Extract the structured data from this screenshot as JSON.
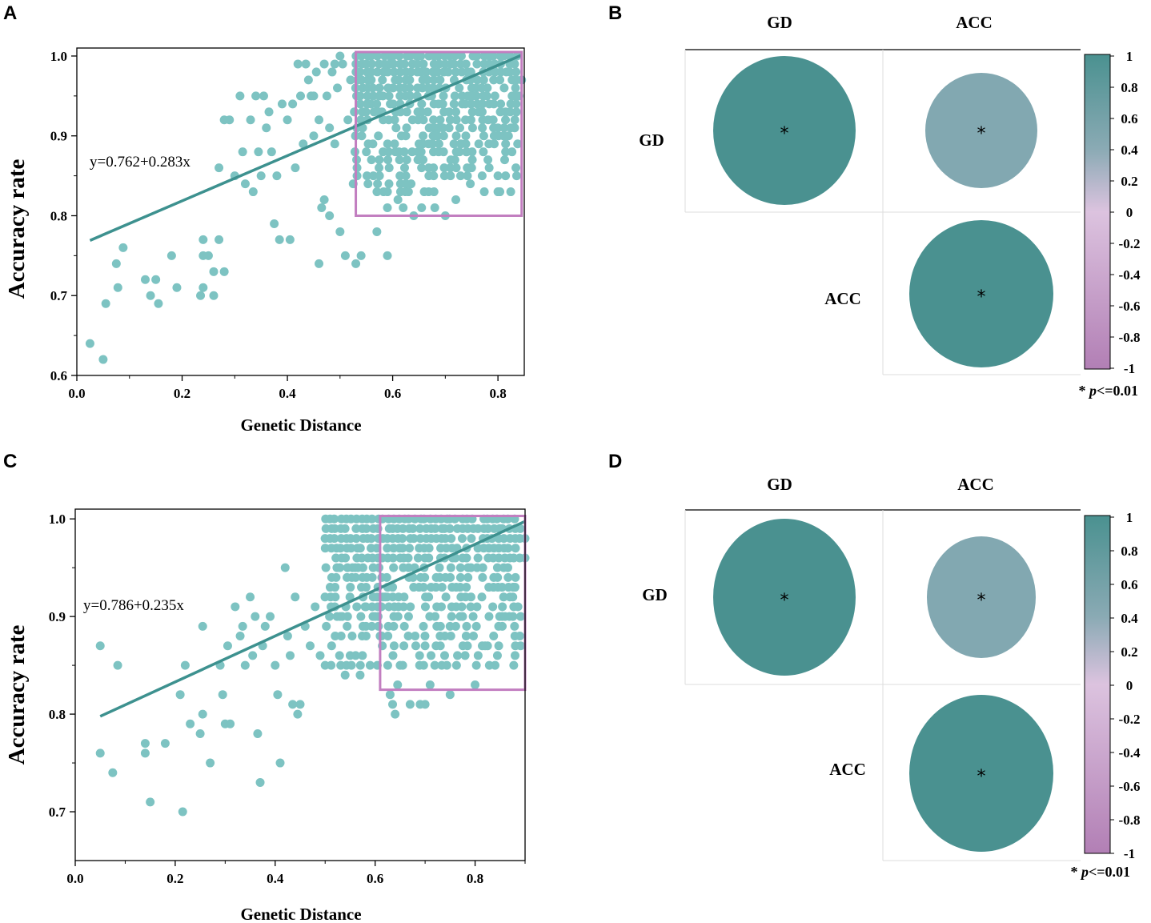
{
  "panels": {
    "A": "A",
    "B": "B",
    "C": "C",
    "D": "D"
  },
  "colors": {
    "point": "#7dc3c2",
    "fit_line": "#3d918f",
    "highlight_box": "#c27ec0",
    "circle_strong": "#4a9190",
    "circle_weak": "#82a8b1",
    "cbar_top": "#4a9190",
    "cbar_upper": "#8aaab4",
    "cbar_mid": "#dcc3df",
    "cbar_bottom": "#b27fb5",
    "grid": "#dddddd"
  },
  "chart_data": [
    {
      "panel": "A",
      "type": "scatter",
      "xlabel": "Genetic Distance",
      "ylabel": "Accuracy rate",
      "xlim": [
        0.0,
        0.85
      ],
      "ylim": [
        0.6,
        1.01
      ],
      "xticks": [
        "0.0",
        "0.2",
        "0.4",
        "0.6",
        "0.8"
      ],
      "xtick_values": [
        0.0,
        0.2,
        0.4,
        0.6,
        0.8
      ],
      "yticks": [
        "0.6",
        "0.7",
        "0.8",
        "0.9",
        "1.0"
      ],
      "ytick_values": [
        0.6,
        0.7,
        0.8,
        0.9,
        1.0
      ],
      "equation": "y=0.762+0.283x",
      "fit": {
        "intercept": 0.762,
        "slope": 0.283,
        "x_range": [
          0.025,
          0.845
        ]
      },
      "highlight_region": {
        "x": [
          0.53,
          0.845
        ],
        "y": [
          0.8,
          1.005
        ]
      },
      "points": [
        [
          0.025,
          0.64
        ],
        [
          0.05,
          0.62
        ],
        [
          0.055,
          0.69
        ],
        [
          0.075,
          0.74
        ],
        [
          0.078,
          0.71
        ],
        [
          0.088,
          0.76
        ],
        [
          0.13,
          0.72
        ],
        [
          0.14,
          0.7
        ],
        [
          0.15,
          0.72
        ],
        [
          0.155,
          0.69
        ],
        [
          0.18,
          0.75
        ],
        [
          0.19,
          0.71
        ],
        [
          0.235,
          0.7
        ],
        [
          0.24,
          0.75
        ],
        [
          0.24,
          0.77
        ],
        [
          0.24,
          0.71
        ],
        [
          0.25,
          0.75
        ],
        [
          0.26,
          0.7
        ],
        [
          0.26,
          0.73
        ],
        [
          0.27,
          0.77
        ],
        [
          0.28,
          0.73
        ],
        [
          0.27,
          0.86
        ],
        [
          0.28,
          0.92
        ],
        [
          0.29,
          0.92
        ],
        [
          0.3,
          0.85
        ],
        [
          0.31,
          0.95
        ],
        [
          0.315,
          0.88
        ],
        [
          0.32,
          0.84
        ],
        [
          0.33,
          0.92
        ],
        [
          0.335,
          0.83
        ],
        [
          0.34,
          0.95
        ],
        [
          0.345,
          0.88
        ],
        [
          0.35,
          0.85
        ],
        [
          0.355,
          0.95
        ],
        [
          0.36,
          0.91
        ],
        [
          0.365,
          0.93
        ],
        [
          0.37,
          0.88
        ],
        [
          0.375,
          0.79
        ],
        [
          0.38,
          0.85
        ],
        [
          0.385,
          0.77
        ],
        [
          0.39,
          0.94
        ],
        [
          0.4,
          0.92
        ],
        [
          0.405,
          0.77
        ],
        [
          0.41,
          0.94
        ],
        [
          0.415,
          0.86
        ],
        [
          0.42,
          0.99
        ],
        [
          0.425,
          0.95
        ],
        [
          0.43,
          0.89
        ],
        [
          0.435,
          0.99
        ],
        [
          0.44,
          0.97
        ],
        [
          0.445,
          0.95
        ],
        [
          0.45,
          0.9
        ],
        [
          0.455,
          0.98
        ],
        [
          0.46,
          0.92
        ],
        [
          0.465,
          0.81
        ],
        [
          0.47,
          0.99
        ],
        [
          0.475,
          0.95
        ],
        [
          0.48,
          0.91
        ],
        [
          0.485,
          0.98
        ],
        [
          0.49,
          0.89
        ],
        [
          0.495,
          0.96
        ],
        [
          0.5,
          0.78
        ],
        [
          0.505,
          0.99
        ],
        [
          0.51,
          0.75
        ],
        [
          0.515,
          0.92
        ],
        [
          0.52,
          0.97
        ],
        [
          0.525,
          0.84
        ],
        [
          0.45,
          0.95
        ],
        [
          0.46,
          0.74
        ],
        [
          0.47,
          0.82
        ],
        [
          0.48,
          0.8
        ],
        [
          0.49,
          0.99
        ],
        [
          0.5,
          1.0
        ],
        [
          0.53,
          0.74
        ],
        [
          0.54,
          0.75
        ],
        [
          0.55,
          0.88
        ],
        [
          0.57,
          0.78
        ],
        [
          0.59,
          0.75
        ],
        [
          0.59,
          0.81
        ],
        [
          0.61,
          0.82
        ],
        [
          0.62,
          0.81
        ],
        [
          0.63,
          0.83
        ],
        [
          0.64,
          0.8
        ],
        [
          0.655,
          0.81
        ],
        [
          0.66,
          0.83
        ],
        [
          0.68,
          0.81
        ],
        [
          0.7,
          0.8
        ],
        [
          0.72,
          0.82
        ],
        [
          0.75,
          0.86
        ],
        [
          0.77,
          0.85
        ],
        [
          0.8,
          0.83
        ],
        [
          0.8,
          0.85
        ],
        [
          0.82,
          0.9
        ],
        [
          0.84,
          0.95
        ],
        [
          0.845,
          0.97
        ],
        [
          0.74,
          0.88
        ],
        [
          0.73,
          0.89
        ],
        [
          0.75,
          0.95
        ],
        [
          0.68,
          0.9
        ],
        [
          0.65,
          0.89
        ]
      ],
      "dense_region": {
        "x": [
          0.53,
          0.84
        ],
        "y": [
          0.83,
          1.0
        ]
      }
    },
    {
      "panel": "C",
      "type": "scatter",
      "xlabel": "Genetic Distance",
      "ylabel": "Accuracy rate",
      "xlim": [
        0.0,
        0.9
      ],
      "ylim": [
        0.65,
        1.01
      ],
      "xticks": [
        "0.0",
        "0.2",
        "0.4",
        "0.6",
        "0.8"
      ],
      "xtick_values": [
        0.0,
        0.2,
        0.4,
        0.6,
        0.8
      ],
      "yticks": [
        "0.7",
        "0.8",
        "0.9",
        "1.0"
      ],
      "ytick_values": [
        0.7,
        0.8,
        0.9,
        1.0
      ],
      "equation": "y=0.786+0.235x",
      "fit": {
        "intercept": 0.786,
        "slope": 0.235,
        "x_range": [
          0.05,
          0.9
        ]
      },
      "highlight_region": {
        "x": [
          0.61,
          0.9
        ],
        "y": [
          0.825,
          1.003
        ]
      },
      "points": [
        [
          0.05,
          0.87
        ],
        [
          0.05,
          0.76
        ],
        [
          0.075,
          0.74
        ],
        [
          0.085,
          0.85
        ],
        [
          0.14,
          0.77
        ],
        [
          0.14,
          0.76
        ],
        [
          0.15,
          0.71
        ],
        [
          0.18,
          0.77
        ],
        [
          0.21,
          0.82
        ],
        [
          0.215,
          0.7
        ],
        [
          0.22,
          0.85
        ],
        [
          0.23,
          0.79
        ],
        [
          0.25,
          0.78
        ],
        [
          0.255,
          0.8
        ],
        [
          0.255,
          0.89
        ],
        [
          0.27,
          0.75
        ],
        [
          0.29,
          0.85
        ],
        [
          0.295,
          0.82
        ],
        [
          0.3,
          0.79
        ],
        [
          0.305,
          0.87
        ],
        [
          0.31,
          0.79
        ],
        [
          0.32,
          0.91
        ],
        [
          0.33,
          0.88
        ],
        [
          0.335,
          0.89
        ],
        [
          0.34,
          0.85
        ],
        [
          0.35,
          0.92
        ],
        [
          0.355,
          0.86
        ],
        [
          0.36,
          0.9
        ],
        [
          0.365,
          0.78
        ],
        [
          0.37,
          0.73
        ],
        [
          0.375,
          0.87
        ],
        [
          0.38,
          0.89
        ],
        [
          0.39,
          0.9
        ],
        [
          0.4,
          0.85
        ],
        [
          0.405,
          0.82
        ],
        [
          0.41,
          0.75
        ],
        [
          0.42,
          0.95
        ],
        [
          0.425,
          0.88
        ],
        [
          0.43,
          0.86
        ],
        [
          0.435,
          0.81
        ],
        [
          0.44,
          0.92
        ],
        [
          0.445,
          0.8
        ],
        [
          0.45,
          0.81
        ],
        [
          0.46,
          0.89
        ],
        [
          0.47,
          0.87
        ],
        [
          0.48,
          0.91
        ],
        [
          0.49,
          0.86
        ],
        [
          0.5,
          0.85
        ],
        [
          0.51,
          0.93
        ],
        [
          0.52,
          0.88
        ],
        [
          0.53,
          0.9
        ],
        [
          0.54,
          0.84
        ],
        [
          0.55,
          0.86
        ],
        [
          0.56,
          0.95
        ],
        [
          0.57,
          0.84
        ],
        [
          0.58,
          0.91
        ],
        [
          0.59,
          0.85
        ],
        [
          0.6,
          0.9
        ],
        [
          0.61,
          0.88
        ],
        [
          0.62,
          0.92
        ],
        [
          0.63,
          0.82
        ],
        [
          0.635,
          0.81
        ],
        [
          0.64,
          0.8
        ],
        [
          0.645,
          0.83
        ],
        [
          0.65,
          0.85
        ],
        [
          0.67,
          0.81
        ],
        [
          0.69,
          0.81
        ],
        [
          0.7,
          0.81
        ],
        [
          0.71,
          0.83
        ],
        [
          0.75,
          0.82
        ],
        [
          0.8,
          0.83
        ],
        [
          0.82,
          0.87
        ],
        [
          0.84,
          0.85
        ],
        [
          0.86,
          0.9
        ],
        [
          0.88,
          0.93
        ],
        [
          0.9,
          0.98
        ],
        [
          0.9,
          0.96
        ],
        [
          0.78,
          0.86
        ],
        [
          0.77,
          0.9
        ],
        [
          0.73,
          0.88
        ],
        [
          0.72,
          0.9
        ],
        [
          0.68,
          0.88
        ]
      ],
      "dense_region": {
        "x": [
          0.5,
          0.89
        ],
        "y": [
          0.85,
          1.0
        ]
      }
    },
    {
      "panel": "B",
      "type": "heatmap",
      "row_labels": [
        "GD",
        "ACC"
      ],
      "col_labels": [
        "GD",
        "ACC"
      ],
      "cells": [
        {
          "row": 0,
          "col": 0,
          "value": 1.0,
          "mark": "*"
        },
        {
          "row": 0,
          "col": 1,
          "value": 0.62,
          "mark": "*"
        },
        {
          "row": 1,
          "col": 1,
          "value": 1.0,
          "mark": "*"
        }
      ],
      "colorbar_ticks": [
        "1",
        "0.8",
        "0.6",
        "0.4",
        "0.2",
        "0",
        "-0.2",
        "-0.4",
        "-0.6",
        "-0.8",
        "-1"
      ],
      "colorbar_range": [
        -1,
        1
      ],
      "note_star": "* ",
      "note_p": "p",
      "note_rest": "<=0.01"
    },
    {
      "panel": "D",
      "type": "heatmap",
      "row_labels": [
        "GD",
        "ACC"
      ],
      "col_labels": [
        "GD",
        "ACC"
      ],
      "cells": [
        {
          "row": 0,
          "col": 0,
          "value": 1.0,
          "mark": "*"
        },
        {
          "row": 0,
          "col": 1,
          "value": 0.58,
          "mark": "*"
        },
        {
          "row": 1,
          "col": 1,
          "value": 1.0,
          "mark": "*"
        }
      ],
      "colorbar_ticks": [
        "1",
        "0.8",
        "0.6",
        "0.4",
        "0.2",
        "0",
        "-0.2",
        "-0.4",
        "-0.6",
        "-0.8",
        "-1"
      ],
      "colorbar_range": [
        -1,
        1
      ],
      "note_star": "* ",
      "note_p": "p",
      "note_rest": "<=0.01"
    }
  ]
}
